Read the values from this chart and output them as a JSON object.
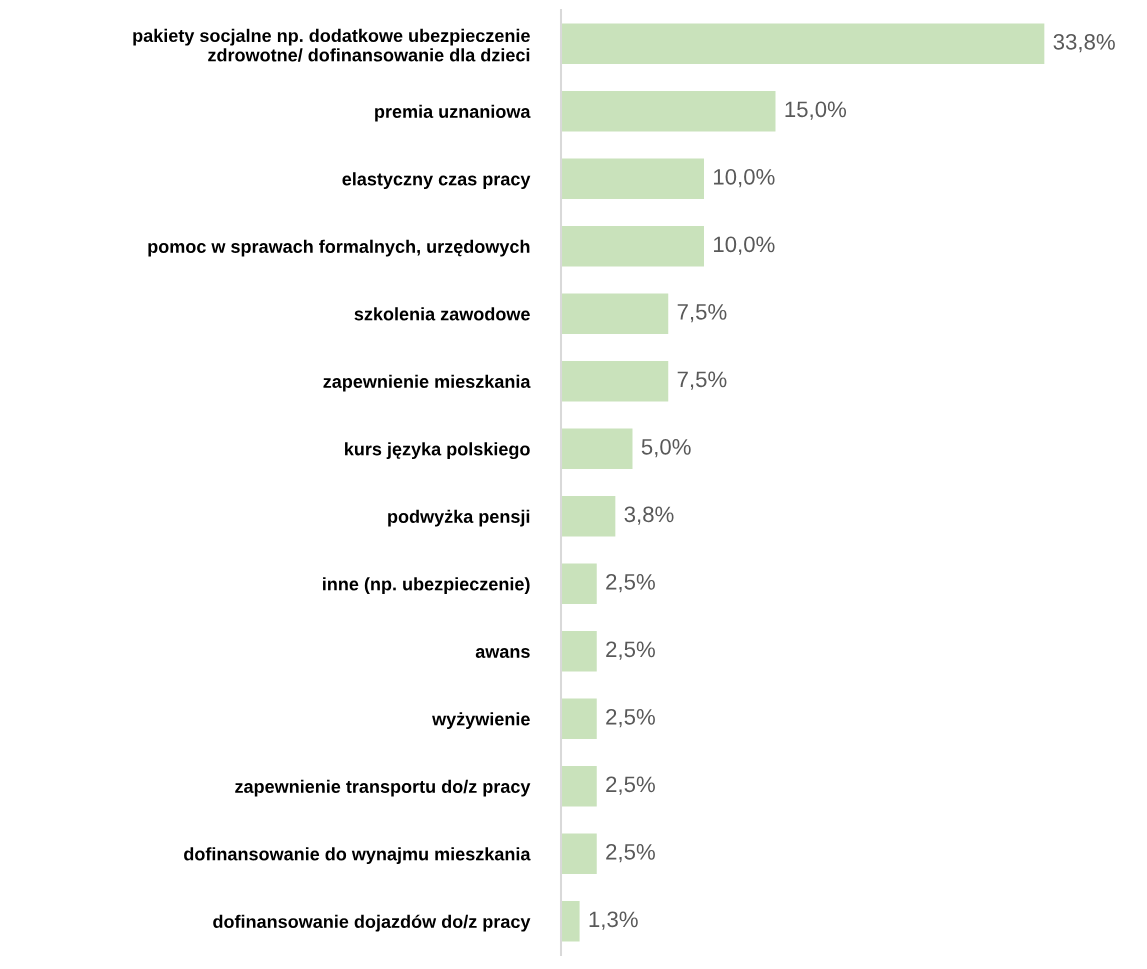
{
  "chart_data": {
    "type": "bar",
    "orientation": "horizontal",
    "categories": [
      "pakiety socjalne np. dodatkowe ubezpieczenie\nzdrowotne/ dofinansowanie dla dzieci",
      "premia uznaniowa",
      "elastyczny czas pracy",
      "pomoc w sprawach formalnych, urzędowych",
      "szkolenia zawodowe",
      "zapewnienie mieszkania",
      "kurs języka polskiego",
      "podwyżka pensji",
      "inne (np. ubezpieczenie)",
      "awans",
      "wyżywienie",
      "zapewnienie transportu do/z pracy",
      "dofinansowanie do wynajmu mieszkania",
      "dofinansowanie dojazdów do/z pracy"
    ],
    "values": [
      33.8,
      15.0,
      10.0,
      10.0,
      7.5,
      7.5,
      5.0,
      3.8,
      2.5,
      2.5,
      2.5,
      2.5,
      2.5,
      1.3
    ],
    "value_labels": [
      "33,8%",
      "15,0%",
      "10,0%",
      "10,0%",
      "7,5%",
      "7,5%",
      "5,0%",
      "3,8%",
      "2,5%",
      "2,5%",
      "2,5%",
      "2,5%",
      "2,5%",
      "1,3%"
    ],
    "color": "#c9e2bb",
    "grid": false,
    "legend": false
  }
}
